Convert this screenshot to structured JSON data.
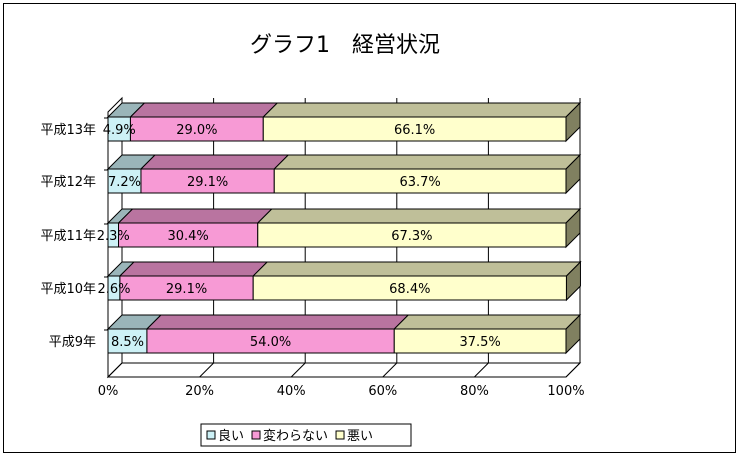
{
  "chart_data": {
    "type": "bar",
    "orientation": "horizontal",
    "stacked": true,
    "percent_stacked": true,
    "title": "グラフ1　経営状況",
    "categories": [
      "平成13年",
      "平成12年",
      "平成11年",
      "平成10年",
      "平成9年"
    ],
    "series": [
      {
        "name": "良い",
        "color": "#cdf1f6",
        "values": [
          4.9,
          7.2,
          2.3,
          2.6,
          8.5
        ],
        "labels": [
          "4.9%",
          "7.2%",
          "2.3%",
          "2.6%",
          "8.5%"
        ]
      },
      {
        "name": "変わらない",
        "color": "#f79ad5",
        "values": [
          29.0,
          29.1,
          30.4,
          29.1,
          54.0
        ],
        "labels": [
          "29.0%",
          "29.1%",
          "30.4%",
          "29.1%",
          "54.0%"
        ]
      },
      {
        "name": "悪い",
        "color": "#ffffcc",
        "values": [
          66.1,
          63.7,
          67.3,
          68.4,
          37.5
        ],
        "labels": [
          "66.1%",
          "63.7%",
          "67.3%",
          "68.4%",
          "37.5%"
        ]
      }
    ],
    "xaxis_ticks": [
      "0%",
      "20%",
      "40%",
      "60%",
      "80%",
      "100%"
    ],
    "xlim": [
      0,
      100
    ],
    "grid": true,
    "legend_position": "bottom"
  }
}
